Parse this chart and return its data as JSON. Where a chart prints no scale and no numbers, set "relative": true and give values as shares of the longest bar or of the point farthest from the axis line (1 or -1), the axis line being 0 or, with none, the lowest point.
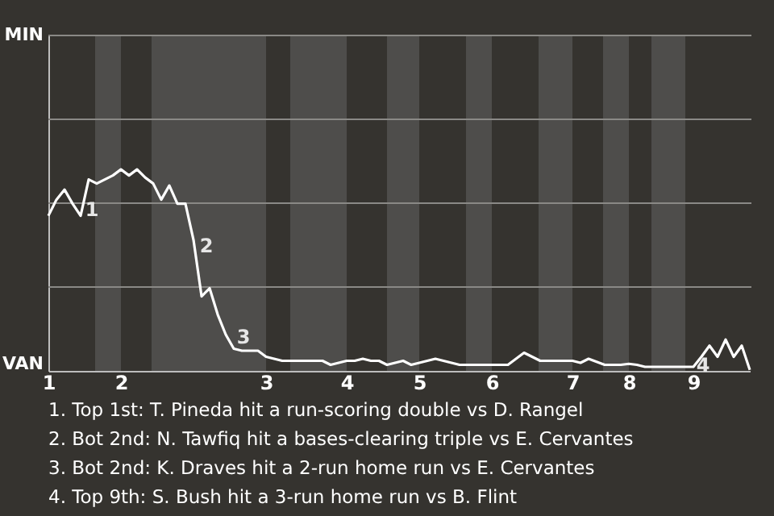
{
  "chart_data": {
    "type": "line",
    "relative": true,
    "categories": [
      "1",
      null,
      null,
      null,
      null,
      null,
      null,
      null,
      null,
      "2",
      null,
      null,
      null,
      null,
      null,
      null,
      null,
      null,
      null,
      null,
      null,
      null,
      null,
      null,
      null,
      null,
      null,
      "3",
      null,
      null,
      null,
      null,
      null,
      null,
      null,
      null,
      null,
      "4",
      null,
      null,
      null,
      null,
      null,
      null,
      null,
      null,
      "5",
      null,
      null,
      null,
      null,
      null,
      null,
      null,
      null,
      "6",
      null,
      null,
      null,
      null,
      null,
      null,
      null,
      null,
      null,
      "7",
      null,
      null,
      null,
      null,
      null,
      null,
      "8",
      null,
      null,
      null,
      null,
      null,
      null,
      null,
      "9",
      null,
      null,
      null,
      null,
      null,
      null,
      null
    ],
    "series": [
      {
        "color": "#ffffff",
        "values": [
          0.77,
          0.85,
          0.9,
          0.83,
          0.77,
          0.95,
          0.93,
          0.95,
          0.97,
          1,
          0.97,
          1,
          0.96,
          0.93,
          0.85,
          0.92,
          0.83,
          0.83,
          0.65,
          0.37,
          0.41,
          0.28,
          0.18,
          0.11,
          0.1,
          0.1,
          0.1,
          0.07,
          0.06,
          0.05,
          0.05,
          0.05,
          0.05,
          0.05,
          0.05,
          0.03,
          0.04,
          0.05,
          0.05,
          0.06,
          0.05,
          0.05,
          0.03,
          0.04,
          0.05,
          0.03,
          0.04,
          0.05,
          0.06,
          0.05,
          0.04,
          0.03,
          0.03,
          0.03,
          0.03,
          0.03,
          0.03,
          0.03,
          0.06,
          0.09,
          0.07,
          0.05,
          0.05,
          0.05,
          0.05,
          0.05,
          0.04,
          0.06,
          0.045,
          0.03,
          0.03,
          0.03,
          0.035,
          0.03,
          0.02,
          0.02,
          0.02,
          0.02,
          0.02,
          0.02,
          0.02,
          0.07,
          0.125,
          0.07,
          0.155,
          0.07,
          0.125,
          0.005
        ]
      }
    ],
    "ref_lines": [
      {
        "axis": "y",
        "value": 0.416,
        "color": "#8a8986"
      },
      {
        "axis": "y",
        "value": 0.833,
        "color": "#8a8986"
      },
      {
        "axis": "y",
        "value": 1.249,
        "color": "#8a8986"
      },
      {
        "axis": "y",
        "value": 1.665,
        "color": "#8a8986"
      }
    ],
    "annotations": [
      "MIN",
      "VAN",
      "1",
      "2",
      "3",
      "4",
      "1. Top 1st: T. Pineda hit a run-scoring double vs D. Rangel",
      "2. Bot 2nd: N. Tawfiq hit a bases-clearing triple vs E. Cervantes",
      "3. Bot 2nd: K. Draves hit a 2-run home run vs E. Cervantes",
      "4. Top 9th: S. Bush hit a 3-run home run vs B. Flint"
    ]
  }
}
